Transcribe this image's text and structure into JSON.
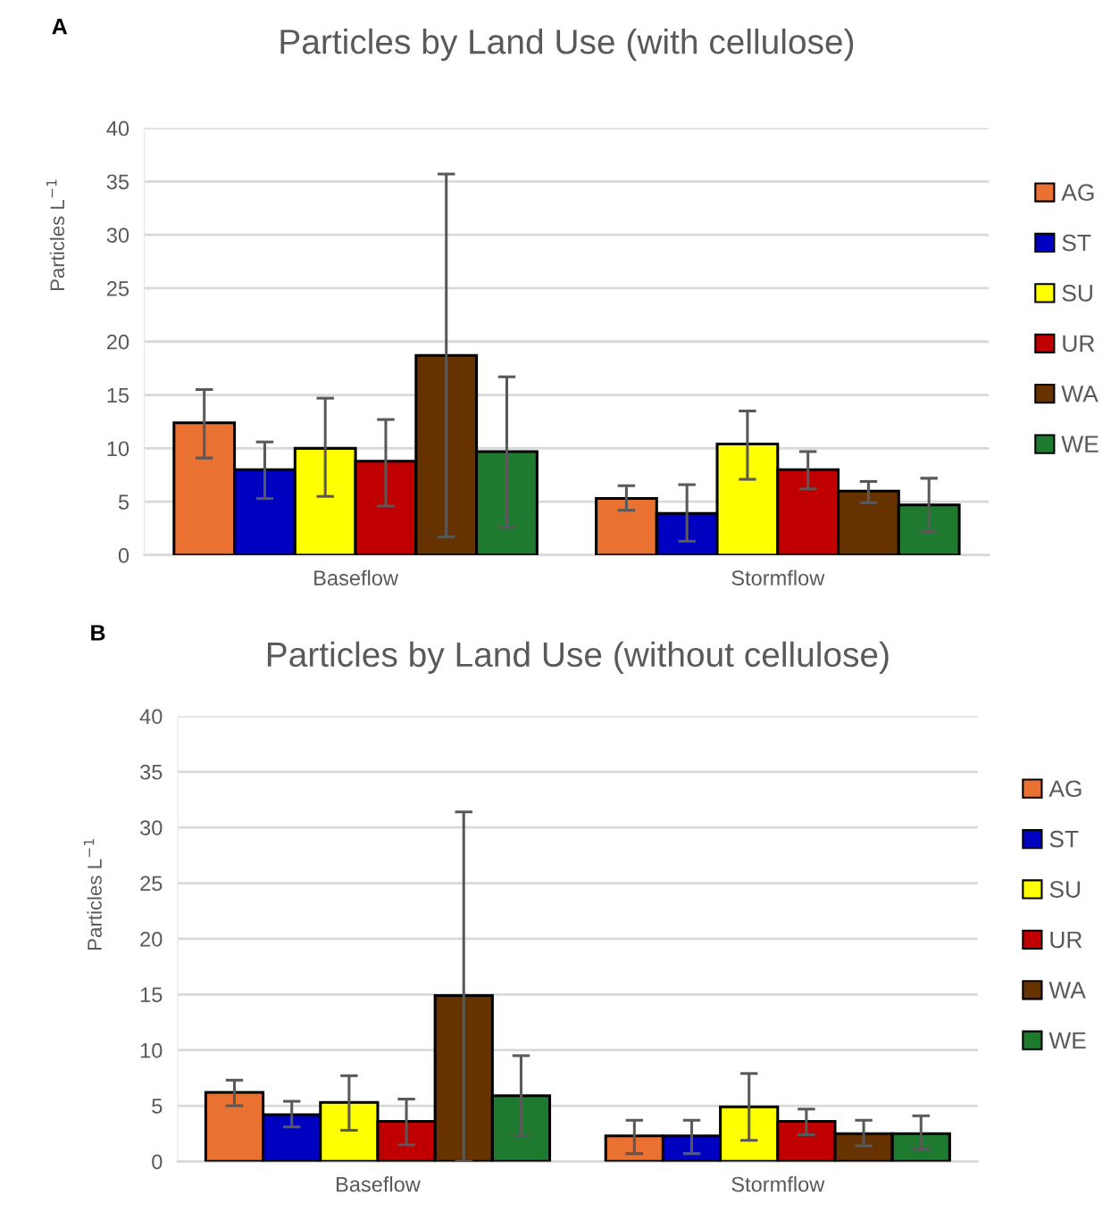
{
  "chart_data": [
    {
      "type": "bar",
      "title": "Particles by Land Use (with cellulose)",
      "ylabel": "Particles L$^{−1}$",
      "annotations": [
        "A"
      ],
      "categories": [
        "Baseflow",
        "Stormflow"
      ],
      "series": [
        {
          "name": "AG",
          "color": "#e97132",
          "values": [
            12.4,
            5.3
          ],
          "errors": [
            [
              9.1,
              15.5
            ],
            [
              4.2,
              6.5
            ]
          ]
        },
        {
          "name": "ST",
          "color": "#0000c0",
          "values": [
            8.0,
            3.9
          ],
          "errors": [
            [
              5.3,
              10.6
            ],
            [
              1.3,
              6.6
            ]
          ]
        },
        {
          "name": "SU",
          "color": "#ffff00",
          "values": [
            10.0,
            10.4
          ],
          "errors": [
            [
              5.5,
              14.7
            ],
            [
              7.1,
              13.5
            ]
          ]
        },
        {
          "name": "UR",
          "color": "#c00000",
          "values": [
            8.8,
            8.0
          ],
          "errors": [
            [
              4.6,
              12.7
            ],
            [
              6.2,
              9.7
            ]
          ]
        },
        {
          "name": "WA",
          "color": "#663300",
          "values": [
            18.7,
            6.0
          ],
          "errors": [
            [
              1.7,
              35.7
            ],
            [
              4.9,
              6.9
            ]
          ]
        },
        {
          "name": "WE",
          "color": "#1e7a2e",
          "values": [
            9.7,
            4.7
          ],
          "errors": [
            [
              2.6,
              16.7
            ],
            [
              2.2,
              7.2
            ]
          ]
        }
      ],
      "ylim": [
        0,
        40
      ],
      "yticks": [
        0,
        5,
        10,
        15,
        20,
        25,
        30,
        35,
        40
      ],
      "grid": "y",
      "legend": "right"
    },
    {
      "type": "bar",
      "title": "Particles by Land Use (without cellulose)",
      "ylabel": "Particles L$^{−1}$",
      "annotations": [
        "B"
      ],
      "categories": [
        "Baseflow",
        "Stormflow"
      ],
      "series": [
        {
          "name": "AG",
          "color": "#e97132",
          "values": [
            6.2,
            2.3
          ],
          "errors": [
            [
              5.0,
              7.3
            ],
            [
              0.7,
              3.7
            ]
          ]
        },
        {
          "name": "ST",
          "color": "#0000c0",
          "values": [
            4.2,
            2.3
          ],
          "errors": [
            [
              3.1,
              5.4
            ],
            [
              0.7,
              3.7
            ]
          ]
        },
        {
          "name": "SU",
          "color": "#ffff00",
          "values": [
            5.3,
            4.9
          ],
          "errors": [
            [
              2.8,
              7.7
            ],
            [
              1.9,
              7.9
            ]
          ]
        },
        {
          "name": "UR",
          "color": "#c00000",
          "values": [
            3.6,
            3.6
          ],
          "errors": [
            [
              1.5,
              5.6
            ],
            [
              2.4,
              4.7
            ]
          ]
        },
        {
          "name": "WA",
          "color": "#663300",
          "values": [
            14.9,
            2.5
          ],
          "errors": [
            [
              0,
              31.4
            ],
            [
              1.4,
              3.7
            ]
          ]
        },
        {
          "name": "WE",
          "color": "#1e7a2e",
          "values": [
            5.9,
            2.5
          ],
          "errors": [
            [
              2.3,
              9.5
            ],
            [
              1.1,
              4.1
            ]
          ]
        }
      ],
      "ylim": [
        0,
        40
      ],
      "yticks": [
        0,
        5,
        10,
        15,
        20,
        25,
        30,
        35,
        40
      ],
      "grid": "y",
      "legend": "right"
    }
  ]
}
